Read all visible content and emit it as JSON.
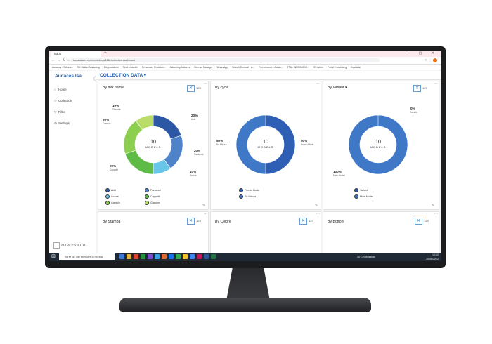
{
  "browser": {
    "tab_title": "Isa.AI",
    "url": "isa.audaces.com/collections/1861/collection-dashboard",
    "window_controls": "–  ▢  ✕",
    "bookmarks": [
      "Audaces - Software",
      "RD Station Marketing",
      "Blog Audaces",
      "Feed LinkedIn",
      "Personas | Produtos...",
      "Marketing Audaces",
      "License Manager",
      "WhatsApp",
      "Search Console - A...",
      "Performance - Audac...",
      "FTA - INDIRNOGE...",
      "GTmetrix",
      "Portal Franchising",
      "Devidash"
    ]
  },
  "sidebar": {
    "brand": "Audaces Isa",
    "items": [
      {
        "icon": "home-icon",
        "glyph": "⌂",
        "label": "Home"
      },
      {
        "icon": "collection-icon",
        "glyph": "◇",
        "label": "Collection"
      },
      {
        "icon": "filter-icon",
        "glyph": "▽",
        "label": "Filter"
      },
      {
        "icon": "gear-icon",
        "glyph": "⚙",
        "label": "Settings"
      }
    ],
    "footer": "AUDACES AUTO..."
  },
  "page": {
    "title": "COLLECTION DATA",
    "title_caret": "▾"
  },
  "cards": [
    {
      "title": "By mix name",
      "btn": "✕",
      "count_label": "123"
    },
    {
      "title": "By cycle",
      "btn": "✕",
      "count_label": "123"
    },
    {
      "title": "By Variant ▾",
      "btn": "✕",
      "count_label": "123"
    },
    {
      "title": "By Stampa",
      "btn": "✕",
      "count_label": "123"
    },
    {
      "title": "By Colore",
      "btn": "✕",
      "count_label": "123"
    },
    {
      "title": "By Bottoni",
      "btn": "✕",
      "count_label": "123"
    }
  ],
  "chart_data": [
    {
      "type": "pie",
      "title": "By mix name",
      "center_value": "10",
      "center_label": "MODELS",
      "categories": [
        "Abiti",
        "Pantaloni",
        "Gonne",
        "Cappotti",
        "Camicie",
        "Giacche"
      ],
      "values": [
        20,
        20,
        10,
        20,
        20,
        10
      ],
      "percent_labels": [
        "20%",
        "20%",
        "10%",
        "20%",
        "20%",
        "10%"
      ],
      "colors": [
        "#2b57a5",
        "#4f83c9",
        "#69c6e8",
        "#5dbb46",
        "#8ccf4f",
        "#b9dc6a"
      ]
    },
    {
      "type": "pie",
      "title": "By cycle",
      "center_value": "10",
      "center_label": "MODELS",
      "categories": [
        "Pronto Moda",
        "Su Misura"
      ],
      "values": [
        50,
        50
      ],
      "percent_labels": [
        "50%",
        "50%"
      ],
      "colors": [
        "#2f5fb5",
        "#3f78c7"
      ]
    },
    {
      "type": "pie",
      "title": "By Variant",
      "center_value": "10",
      "center_label": "MODELS",
      "categories": [
        "Variant",
        "Main Model"
      ],
      "values": [
        0,
        100
      ],
      "percent_labels": [
        "0%",
        "100%"
      ],
      "colors": [
        "#2b57a5",
        "#3f78c7"
      ]
    }
  ],
  "taskbar": {
    "search_placeholder": "Scrivi qui per eseguire la ricerca",
    "weather": "30°C Soleggiato",
    "time": "10:12",
    "date": "30/06/2022",
    "app_colors": [
      "#3b78d8",
      "#e2b33c",
      "#d8452f",
      "#2b8f3c",
      "#7b4bd1",
      "#3aa0e2",
      "#e06a2f",
      "#1a73e8",
      "#34a853",
      "#f2c037",
      "#4285f4",
      "#c2185b",
      "#2b579a",
      "#217346"
    ]
  }
}
